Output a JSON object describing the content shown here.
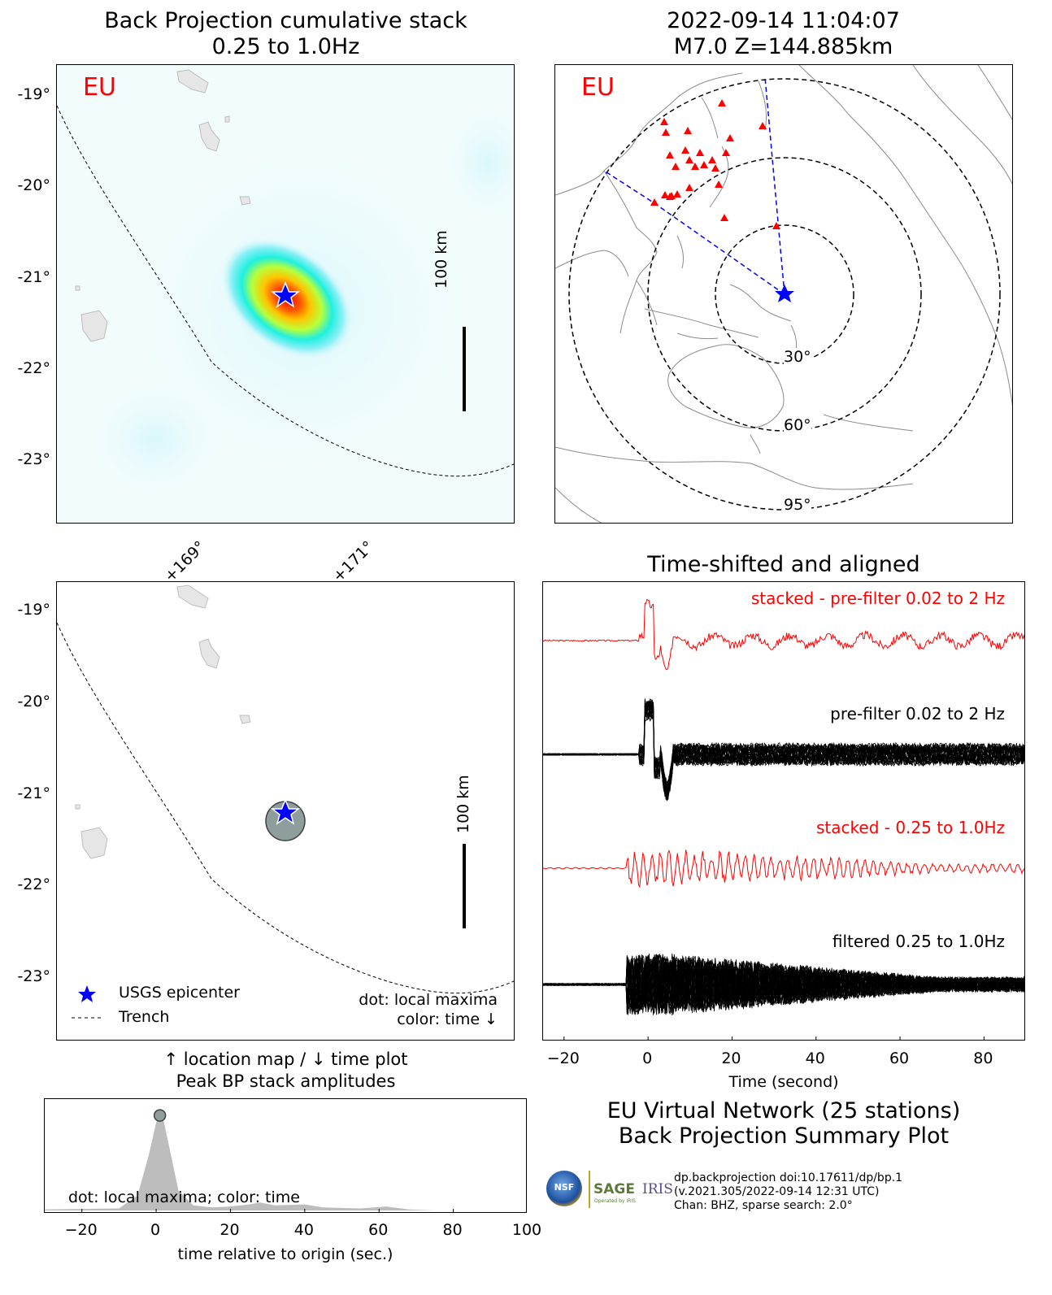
{
  "bp_panel": {
    "title_line1": "Back Projection cumulative stack",
    "title_line2": "0.25 to 1.0Hz",
    "network_label": "EU",
    "scale_label": "100 km",
    "lat_ticks": [
      "-19°",
      "-20°",
      "-21°",
      "-22°",
      "-23°"
    ],
    "lon_ticks": [
      "+169°",
      "+171°"
    ]
  },
  "event_panel": {
    "title_line1": "2022-09-14 11:04:07",
    "title_line2": "M7.0 Z=144.885km",
    "network_label": "EU",
    "distance_rings": [
      "30°",
      "60°",
      "95°"
    ]
  },
  "maxima_panel": {
    "scale_label": "100 km",
    "lat_ticks": [
      "-19°",
      "-20°",
      "-21°",
      "-22°",
      "-23°"
    ],
    "legend": {
      "epicenter": "USGS epicenter",
      "trench": "Trench"
    },
    "note_line1": "dot: local maxima",
    "note_line2": "color: time ↓",
    "caption_line1": "↑ location map / ↓ time plot",
    "caption_line2": "Peak BP stack amplitudes"
  },
  "waveform_panel": {
    "title": "Time-shifted and aligned",
    "labels": {
      "stacked_prefilter": "stacked - pre-filter 0.02 to 2 Hz",
      "prefilter": "pre-filter 0.02 to 2 Hz",
      "stacked_filtered": "stacked - 0.25 to 1.0Hz",
      "filtered": "filtered 0.25 to 1.0Hz"
    },
    "xlabel": "Time (second)",
    "x_ticks": [
      "−20",
      "0",
      "20",
      "40",
      "60",
      "80"
    ]
  },
  "amplitude_panel": {
    "note": "dot: local maxima; color: time",
    "xlabel": "time relative to origin (sec.)",
    "x_ticks": [
      "−20",
      "0",
      "20",
      "40",
      "60",
      "80",
      "100"
    ]
  },
  "summary": {
    "line1": "EU Virtual Network (25 stations)",
    "line2": "Back Projection Summary Plot",
    "logo_nsf": "NSF",
    "logo_sage": "SAGE",
    "logo_sage_sub": "Operated by IRIS",
    "logo_iris": "IRIS",
    "footer1": "dp.backprojection doi:10.17611/dp/bp.1",
    "footer2": "(v.2021.305/2022-09-14 12:31 UTC)",
    "footer3": "Chan: BHZ, sparse search: 2.0°"
  },
  "colors": {
    "epicenter": "#0000ff",
    "stacked": "#ff0000",
    "trace": "#000000",
    "station": "#ff0000",
    "path": "#0000ff"
  },
  "chart_data": [
    {
      "type": "heatmap",
      "title": "Back Projection cumulative stack 0.25 to 1.0Hz",
      "x_axis": "longitude",
      "y_axis": "latitude",
      "lon_range": [
        167.9,
        172.9
      ],
      "lat_range": [
        -23.7,
        -18.7
      ],
      "peak": {
        "lon": 170.0,
        "lat": -21.2
      },
      "epicenter": {
        "lon": 170.0,
        "lat": -21.2
      }
    },
    {
      "type": "scatter",
      "title": "Peak BP stack amplitudes (location map)",
      "local_maxima": [
        {
          "lon": 170.0,
          "lat": -21.3
        }
      ],
      "epicenter": {
        "lon": 170.0,
        "lat": -21.2
      }
    },
    {
      "type": "line",
      "title": "Time-shifted and aligned",
      "x_range": [
        -25,
        90
      ],
      "series": [
        "stacked - pre-filter 0.02 to 2 Hz",
        "pre-filter 0.02 to 2 Hz",
        "stacked - 0.25 to 1.0Hz",
        "filtered 0.25 to 1.0Hz"
      ],
      "stations": 25
    },
    {
      "type": "area",
      "title": "Peak BP stack amplitudes",
      "xlabel": "time relative to origin (sec.)",
      "x_range": [
        -30,
        100
      ],
      "x": [
        -30,
        -10,
        -5,
        -2,
        0,
        1,
        2,
        4,
        6,
        10,
        15,
        20,
        25,
        28,
        32,
        40,
        45,
        55,
        62,
        68,
        75,
        100
      ],
      "y": [
        0.01,
        0.02,
        0.15,
        0.55,
        0.88,
        0.95,
        0.9,
        0.55,
        0.2,
        0.05,
        0.03,
        0.04,
        0.06,
        0.08,
        0.05,
        0.06,
        0.03,
        0.02,
        0.04,
        0.01,
        0.0,
        0.0
      ],
      "local_maximum": {
        "x": 1,
        "y": 0.95
      }
    }
  ]
}
